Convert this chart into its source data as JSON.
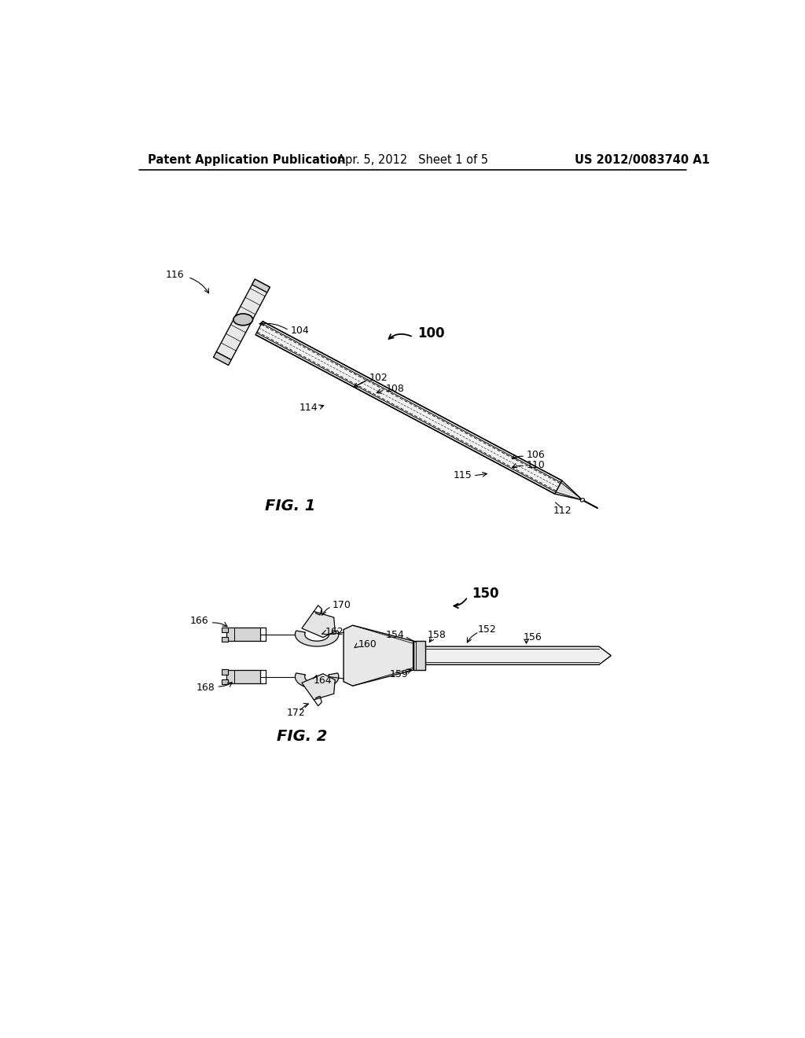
{
  "background_color": "#ffffff",
  "page_width": 10.24,
  "page_height": 13.2,
  "header_left": "Patent Application Publication",
  "header_center": "Apr. 5, 2012   Sheet 1 of 5",
  "header_right": "US 2012/0083740 A1",
  "fig1_label": "FIG. 1",
  "fig2_label": "FIG. 2",
  "line_color": "#000000",
  "fill_light": "#f0f0f0",
  "fill_mid": "#d8d8d8",
  "fill_dark": "#b0b0b0"
}
